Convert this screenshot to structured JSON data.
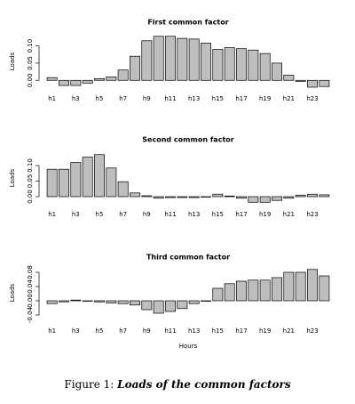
{
  "chart_data": [
    {
      "type": "bar",
      "title": "First common factor",
      "ylabel": "Loads",
      "color": "#bebebe",
      "categories": [
        "h1",
        null,
        "h3",
        null,
        "h5",
        null,
        "h7",
        null,
        "h9",
        null,
        "h11",
        null,
        "h13",
        null,
        "h15",
        null,
        "h17",
        null,
        "h19",
        null,
        "h21",
        null,
        "h23",
        null
      ],
      "values": [
        0.008,
        -0.015,
        -0.015,
        -0.008,
        0.005,
        0.01,
        0.03,
        0.07,
        0.115,
        0.128,
        0.128,
        0.122,
        0.12,
        0.108,
        0.09,
        0.095,
        0.092,
        0.088,
        0.078,
        0.05,
        0.015,
        -0.003,
        -0.02,
        -0.018
      ],
      "ylim": [
        -0.02,
        0.13
      ],
      "yticks": [
        {
          "value": 0,
          "label": "0.00"
        },
        {
          "value": 0.05,
          "label": "0.05"
        },
        {
          "value": 0.1,
          "label": "0.10"
        }
      ]
    },
    {
      "type": "bar",
      "title": "Second common factor",
      "ylabel": "Loads",
      "color": "#bebebe",
      "categories": [
        "h1",
        null,
        "h3",
        null,
        "h5",
        null,
        "h7",
        null,
        "h9",
        null,
        "h11",
        null,
        "h13",
        null,
        "h15",
        null,
        "h17",
        null,
        "h19",
        null,
        "h21",
        null,
        "h23",
        null
      ],
      "values": [
        0.088,
        0.088,
        0.11,
        0.127,
        0.135,
        0.092,
        0.048,
        0.012,
        0.003,
        -0.005,
        -0.003,
        -0.003,
        -0.003,
        0.0,
        0.008,
        0.002,
        -0.005,
        -0.018,
        -0.018,
        -0.012,
        -0.005,
        0.005,
        0.008,
        0.006
      ],
      "ylim": [
        -0.02,
        0.14
      ],
      "yticks": [
        {
          "value": 0,
          "label": "0.00"
        },
        {
          "value": 0.05,
          "label": "0.05"
        },
        {
          "value": 0.1,
          "label": "0.10"
        }
      ]
    },
    {
      "type": "bar",
      "title": "Third common factor",
      "ylabel": "Loads",
      "xlabel": "Hours",
      "color": "#bebebe",
      "categories": [
        "h1",
        null,
        "h3",
        null,
        "h5",
        null,
        "h7",
        null,
        "h9",
        null,
        "h11",
        null,
        "h13",
        null,
        "h15",
        null,
        "h17",
        null,
        "h19",
        null,
        "h21",
        null,
        "h23",
        null
      ],
      "values": [
        -0.008,
        -0.003,
        0.002,
        0.0,
        -0.003,
        -0.006,
        -0.008,
        -0.012,
        -0.025,
        -0.035,
        -0.03,
        -0.022,
        -0.008,
        0.0,
        0.035,
        0.048,
        0.055,
        0.058,
        0.058,
        0.065,
        0.08,
        0.08,
        0.088,
        0.07
      ],
      "ylim": [
        -0.045,
        0.09
      ],
      "yticks": [
        {
          "value": -0.04,
          "label": "-0.04"
        },
        {
          "value": 0,
          "label": "0.00"
        },
        {
          "value": 0.04,
          "label": "0.04"
        },
        {
          "value": 0.08,
          "label": "0.08"
        }
      ]
    }
  ],
  "caption": {
    "label": "Figure 1:",
    "text": "Loads of the common factors"
  }
}
